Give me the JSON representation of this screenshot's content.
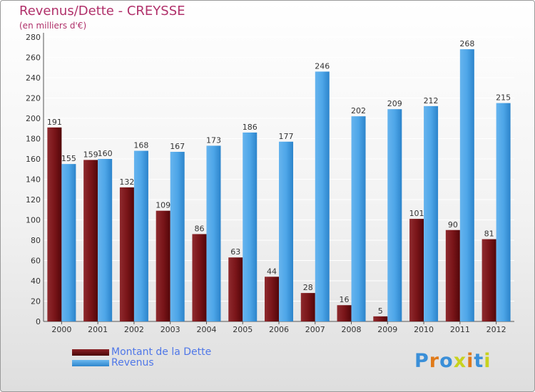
{
  "header": {
    "title": "Revenus/Dette - CREYSSE",
    "subtitle": "(en milliers d'€)"
  },
  "colors": {
    "dette": "#6e0c0f",
    "revenus": "#45a0e6",
    "title": "#b0306a",
    "legend_text": "#4f77e8"
  },
  "legend": {
    "dette_label": "Montant de la Dette",
    "revenus_label": "Revenus"
  },
  "logo": {
    "text": "Proxiti",
    "letter_colors": [
      "#3a8fd8",
      "#e07a1a",
      "#3a8fd8",
      "#c8d21e",
      "#e07a1a",
      "#3a8fd8",
      "#c8d21e"
    ]
  },
  "chart_data": {
    "type": "bar",
    "title": "Revenus/Dette - CREYSSE",
    "subtitle": "(en milliers d'€)",
    "categories": [
      "2000",
      "2001",
      "2002",
      "2003",
      "2004",
      "2005",
      "2006",
      "2007",
      "2008",
      "2009",
      "2010",
      "2011",
      "2012"
    ],
    "series": [
      {
        "name": "Montant de la Dette",
        "values": [
          191,
          159,
          132,
          109,
          86,
          63,
          44,
          28,
          16,
          5,
          101,
          90,
          81
        ]
      },
      {
        "name": "Revenus",
        "values": [
          155,
          160,
          168,
          167,
          173,
          186,
          177,
          246,
          202,
          209,
          212,
          268,
          215
        ]
      }
    ],
    "ylim": [
      0,
      280
    ],
    "yticks": [
      0,
      20,
      40,
      60,
      80,
      100,
      120,
      140,
      160,
      180,
      200,
      220,
      240,
      260,
      280
    ],
    "grid": true,
    "legend_position": "bottom-left"
  }
}
